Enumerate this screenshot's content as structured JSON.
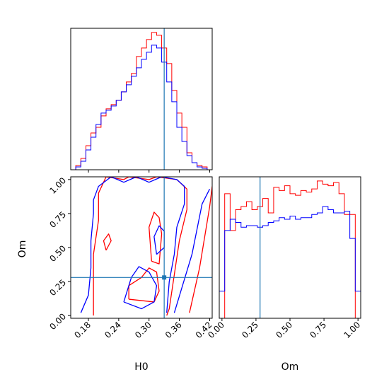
{
  "figure": {
    "type": "corner-plot",
    "colors": {
      "series_a": "#ff0000",
      "series_b": "#0000ff",
      "truth": "#1f77b4"
    }
  },
  "chart_data": [
    {
      "panel": "H0-marginal",
      "type": "histogram",
      "x_range": [
        0.145,
        0.425
      ],
      "bin_edges": [
        0.145,
        0.155,
        0.165,
        0.175,
        0.185,
        0.195,
        0.205,
        0.215,
        0.225,
        0.235,
        0.245,
        0.255,
        0.265,
        0.275,
        0.285,
        0.295,
        0.305,
        0.315,
        0.325,
        0.335,
        0.345,
        0.355,
        0.365,
        0.375,
        0.385,
        0.395,
        0.405,
        0.415,
        0.425
      ],
      "truth": 0.33,
      "series": [
        {
          "color": "#ff0000",
          "values": [
            0,
            0.03,
            0.08,
            0.17,
            0.26,
            0.3,
            0.38,
            0.43,
            0.46,
            0.49,
            0.55,
            0.62,
            0.68,
            0.8,
            0.86,
            0.92,
            0.97,
            0.95,
            0.86,
            0.75,
            0.56,
            0.4,
            0.3,
            0.12,
            0.05,
            0.03,
            0.02,
            0
          ]
        },
        {
          "color": "#0000ff",
          "values": [
            0,
            0.02,
            0.06,
            0.14,
            0.23,
            0.32,
            0.4,
            0.42,
            0.45,
            0.49,
            0.55,
            0.6,
            0.66,
            0.72,
            0.78,
            0.83,
            0.88,
            0.86,
            0.76,
            0.62,
            0.48,
            0.3,
            0.2,
            0.1,
            0.05,
            0.02,
            0.01,
            0
          ]
        }
      ]
    },
    {
      "panel": "Om-marginal",
      "type": "histogram",
      "x_range": [
        -0.02,
        1.02
      ],
      "bin_edges": [
        -0.02,
        0.02,
        0.06,
        0.1,
        0.14,
        0.18,
        0.22,
        0.26,
        0.3,
        0.34,
        0.38,
        0.42,
        0.46,
        0.5,
        0.54,
        0.58,
        0.62,
        0.66,
        0.7,
        0.74,
        0.78,
        0.82,
        0.86,
        0.9,
        0.94,
        0.98,
        1.02
      ],
      "truth": 0.28,
      "series": [
        {
          "color": "#ff0000",
          "values": [
            0,
            0.78,
            0.55,
            0.68,
            0.7,
            0.73,
            0.68,
            0.7,
            0.75,
            0.66,
            0.82,
            0.8,
            0.83,
            0.78,
            0.77,
            0.8,
            0.79,
            0.81,
            0.86,
            0.84,
            0.83,
            0.85,
            0.78,
            0.65,
            0.65,
            0
          ]
        },
        {
          "color": "#0000ff",
          "values": [
            0.17,
            0.55,
            0.62,
            0.6,
            0.57,
            0.58,
            0.58,
            0.57,
            0.58,
            0.6,
            0.61,
            0.63,
            0.62,
            0.64,
            0.62,
            0.63,
            0.63,
            0.65,
            0.66,
            0.7,
            0.68,
            0.66,
            0.66,
            0.67,
            0.5,
            0.17
          ]
        }
      ]
    },
    {
      "panel": "H0-Om-joint",
      "type": "contour",
      "xlabel": "H0",
      "ylabel": "Om",
      "xlim": [
        0.145,
        0.425
      ],
      "ylim": [
        -0.02,
        1.02
      ],
      "xticks": [
        0.18,
        0.24,
        0.3,
        0.36,
        0.42
      ],
      "xtick_labels": [
        "0.18",
        "0.24",
        "0.30",
        "0.36",
        "0.42"
      ],
      "yticks": [
        0.0,
        0.25,
        0.5,
        0.75,
        1.0
      ],
      "ytick_labels": [
        "0.00",
        "0.25",
        "0.50",
        "0.75",
        "1.00"
      ],
      "truth": {
        "H0": 0.33,
        "Om": 0.28
      },
      "series": [
        {
          "color": "#ff0000",
          "contours": [
            [
              [
                0.19,
                0.0
              ],
              [
                0.19,
                0.2
              ],
              [
                0.19,
                0.45
              ],
              [
                0.2,
                0.7
              ],
              [
                0.2,
                0.9
              ],
              [
                0.215,
                1.02
              ],
              [
                0.25,
                1.0
              ],
              [
                0.26,
                1.02
              ],
              [
                0.3,
                1.0
              ],
              [
                0.315,
                1.02
              ],
              [
                0.355,
                1.0
              ],
              [
                0.375,
                0.93
              ],
              [
                0.375,
                0.78
              ],
              [
                0.36,
                0.55
              ],
              [
                0.35,
                0.3
              ],
              [
                0.34,
                0.05
              ],
              [
                0.335,
                0.0
              ]
            ],
            [
              [
                0.26,
                0.12
              ],
              [
                0.31,
                0.1
              ],
              [
                0.32,
                0.18
              ],
              [
                0.315,
                0.32
              ],
              [
                0.3,
                0.35
              ],
              [
                0.285,
                0.28
              ],
              [
                0.26,
                0.22
              ],
              [
                0.26,
                0.12
              ]
            ],
            [
              [
                0.305,
                0.4
              ],
              [
                0.32,
                0.38
              ],
              [
                0.325,
                0.6
              ],
              [
                0.32,
                0.72
              ],
              [
                0.31,
                0.76
              ],
              [
                0.3,
                0.65
              ],
              [
                0.305,
                0.4
              ]
            ],
            [
              [
                0.38,
                0.02
              ],
              [
                0.4,
                0.35
              ],
              [
                0.42,
                0.8
              ],
              [
                0.425,
                0.95
              ]
            ],
            [
              [
                0.215,
                0.48
              ],
              [
                0.225,
                0.55
              ],
              [
                0.22,
                0.6
              ],
              [
                0.21,
                0.55
              ],
              [
                0.215,
                0.48
              ]
            ]
          ]
        },
        {
          "color": "#0000ff",
          "contours": [
            [
              [
                0.165,
                0.02
              ],
              [
                0.18,
                0.15
              ],
              [
                0.185,
                0.35
              ],
              [
                0.185,
                0.55
              ],
              [
                0.19,
                0.75
              ],
              [
                0.19,
                0.85
              ],
              [
                0.2,
                0.95
              ],
              [
                0.225,
                1.02
              ],
              [
                0.25,
                0.98
              ],
              [
                0.275,
                1.02
              ],
              [
                0.3,
                0.98
              ],
              [
                0.325,
                1.02
              ],
              [
                0.355,
                1.0
              ],
              [
                0.37,
                0.95
              ],
              [
                0.37,
                0.82
              ],
              [
                0.355,
                0.65
              ],
              [
                0.35,
                0.45
              ],
              [
                0.34,
                0.25
              ],
              [
                0.335,
                0.02
              ]
            ],
            [
              [
                0.25,
                0.1
              ],
              [
                0.285,
                0.05
              ],
              [
                0.31,
                0.1
              ],
              [
                0.315,
                0.22
              ],
              [
                0.3,
                0.32
              ],
              [
                0.28,
                0.36
              ],
              [
                0.265,
                0.28
              ],
              [
                0.25,
                0.1
              ]
            ],
            [
              [
                0.35,
                0.02
              ],
              [
                0.385,
                0.45
              ],
              [
                0.405,
                0.82
              ],
              [
                0.42,
                0.93
              ]
            ],
            [
              [
                0.315,
                0.45
              ],
              [
                0.33,
                0.5
              ],
              [
                0.33,
                0.62
              ],
              [
                0.32,
                0.66
              ],
              [
                0.31,
                0.58
              ],
              [
                0.315,
                0.45
              ]
            ]
          ]
        }
      ]
    },
    {
      "panel": "Om-axis",
      "xlabel": "Om",
      "xticks": [
        0.0,
        0.25,
        0.5,
        0.75,
        1.0
      ],
      "xtick_labels": [
        "0.00",
        "0.25",
        "0.50",
        "0.75",
        "1.00"
      ]
    }
  ]
}
